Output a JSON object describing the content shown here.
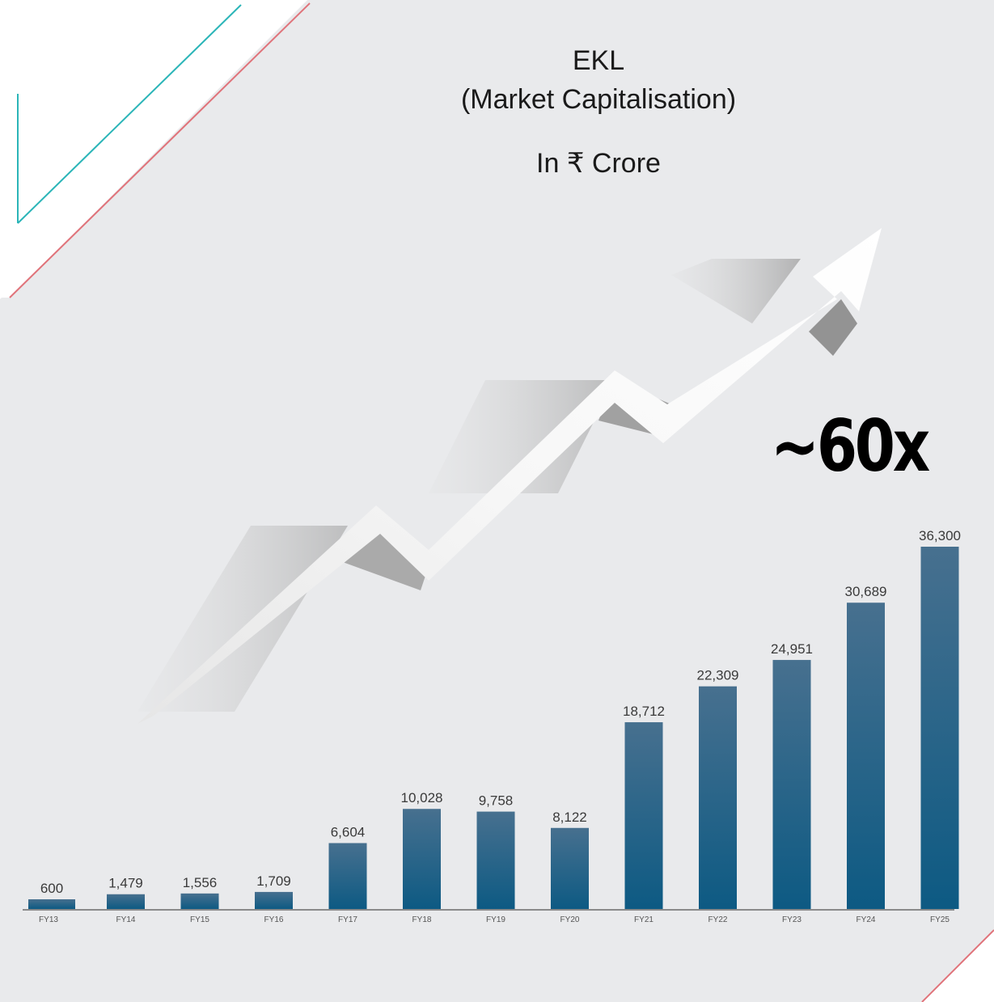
{
  "header": {
    "title": "EKL",
    "subtitle": "(Market Capitalisation)",
    "unit": "In ₹ Crore"
  },
  "callout": {
    "multiplier": "~60x"
  },
  "colors": {
    "bar_top": "#47708f",
    "bar_bottom": "#0d5a83",
    "background": "#e9eaec",
    "accent_teal": "#2bb5b8",
    "accent_red": "#e0737a"
  },
  "chart_data": {
    "type": "bar",
    "categories": [
      "FY13",
      "FY14",
      "FY15",
      "FY16",
      "FY17",
      "FY18",
      "FY19",
      "FY20",
      "FY21",
      "FY22",
      "FY23",
      "FY24",
      "FY25"
    ],
    "values": [
      600,
      1479,
      1556,
      1709,
      6604,
      10028,
      9758,
      8122,
      18712,
      22309,
      24951,
      30689,
      36300
    ],
    "value_labels": [
      "600",
      "1,479",
      "1,556",
      "1,709",
      "6,604",
      "10,028",
      "9,758",
      "8,122",
      "18,712",
      "22,309",
      "24,951",
      "30,689",
      "36,300"
    ],
    "ylim": [
      0,
      36300
    ],
    "grid": false,
    "legend": "none"
  }
}
